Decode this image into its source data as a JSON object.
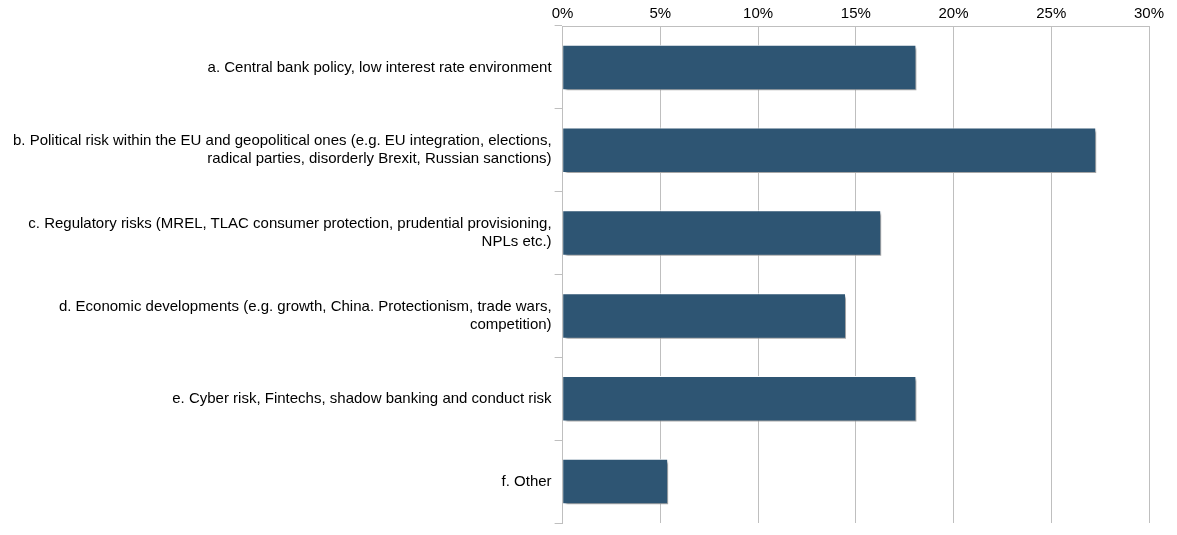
{
  "chart_data": {
    "type": "bar",
    "orientation": "horizontal",
    "categories": [
      "a. Central bank policy, low interest rate environment",
      "b. Political risk within the EU and geopolitical ones (e.g. EU integration, elections, radical parties, disorderly Brexit, Russian sanctions)",
      "c. Regulatory risks (MREL, TLAC consumer protection, prudential provisioning, NPLs etc.)",
      "d. Economic developments (e.g. growth, China. Protectionism, trade wars, competition)",
      "e. Cyber risk, Fintechs, shadow banking and conduct risk",
      "f. Other"
    ],
    "values": [
      18.1,
      27.3,
      16.3,
      14.5,
      18.1,
      5.4
    ],
    "color": "#2e5573",
    "xlim": [
      0,
      30
    ],
    "xticks": [
      {
        "value": 0,
        "label": "0%"
      },
      {
        "value": 5,
        "label": "5%"
      },
      {
        "value": 10,
        "label": "10%"
      },
      {
        "value": 15,
        "label": "15%"
      },
      {
        "value": 20,
        "label": "20%"
      },
      {
        "value": 25,
        "label": "25%"
      },
      {
        "value": 30,
        "label": "30%"
      }
    ],
    "grid": "x"
  }
}
